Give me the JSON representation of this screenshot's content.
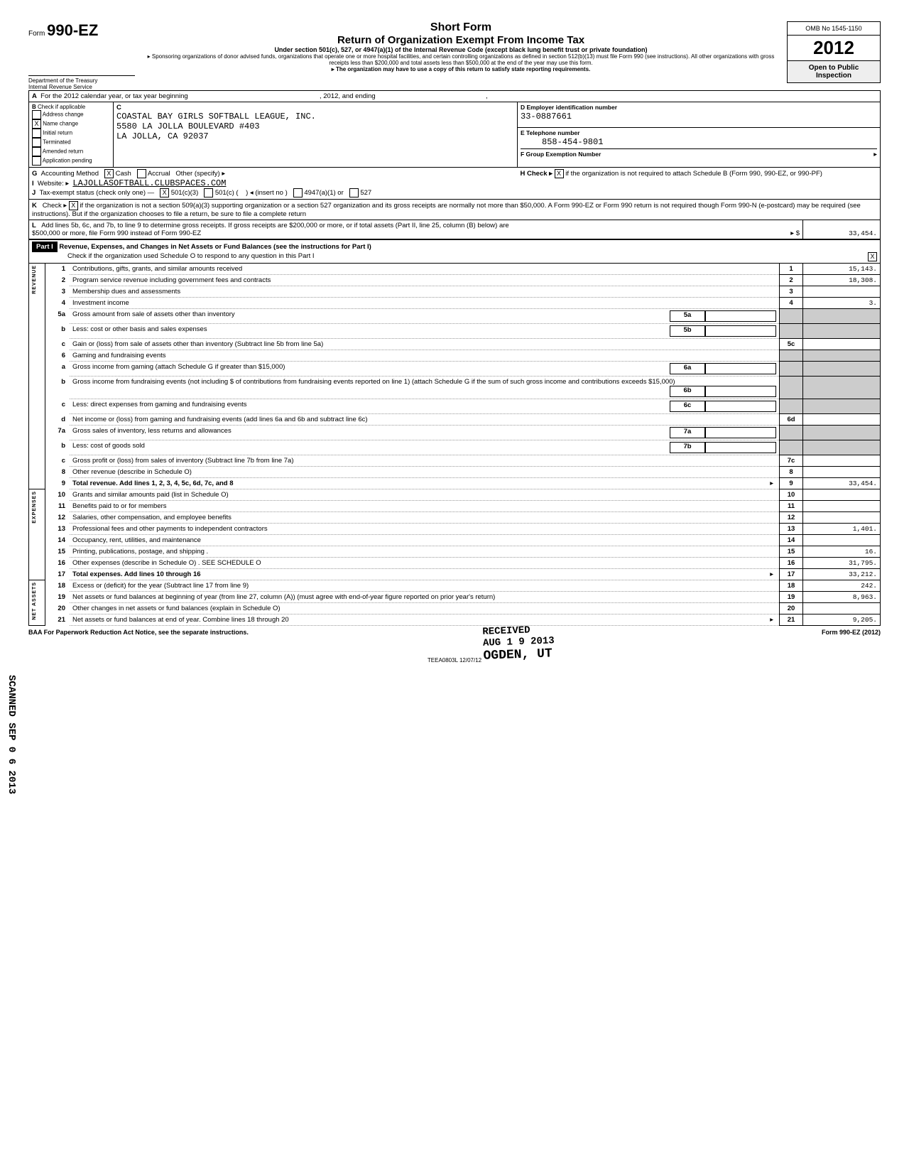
{
  "form": {
    "number_prefix": "Form",
    "number": "990-EZ",
    "title_short": "Short Form",
    "title_main": "Return of Organization Exempt From Income Tax",
    "title_sub": "Under section 501(c), 527, or 4947(a)(1) of the Internal Revenue Code (except black lung benefit trust or private foundation)",
    "sponsor_note": "Sponsoring organizations of donor advised funds, organizations that operate one or more hospital facilities, and certain controlling organizations as defined in section 512(b)(13) must file Form 990 (see instructions). All other organizations with gross receipts less than $200,000 and total assets less than $500,000 at the end of the year may use this form.",
    "satisfy_note": "The organization may have to use a copy of this return to satisfy state reporting requirements.",
    "dept1": "Department of the Treasury",
    "dept2": "Internal Revenue Service",
    "omb": "OMB No 1545-1150",
    "year": "2012",
    "open": "Open to Public Inspection"
  },
  "header": {
    "A": "For the 2012 calendar year, or tax year beginning",
    "A_mid": ", 2012, and ending",
    "A_end": ",",
    "B_label": "Check if applicable",
    "B_opts": [
      "Address change",
      "Name change",
      "Initial return",
      "Terminated",
      "Amended return",
      "Application pending"
    ],
    "B_checked_idx": 1,
    "C_label": "C",
    "org_name": "COASTAL BAY GIRLS SOFTBALL LEAGUE, INC.",
    "org_addr1": "5580 LA JOLLA BOULEVARD #403",
    "org_addr2": "LA JOLLA, CA 92037",
    "D_label": "D  Employer identification number",
    "D_val": "33-0887661",
    "E_label": "E  Telephone number",
    "E_val": "858-454-9801",
    "F_label": "F  Group Exemption Number",
    "G_label": "Accounting Method",
    "G_cash": "Cash",
    "G_accrual": "Accrual",
    "G_other": "Other (specify) ▸",
    "I_label": "Website: ▸",
    "I_val": "LAJOLLASOFTBALL.CLUBSPACES.COM",
    "J_label": "Tax-exempt status (check only one) —",
    "J_501c3": "501(c)(3)",
    "J_501c": "501(c) (",
    "J_insert": ") ◂ (insert no )",
    "J_4947": "4947(a)(1) or",
    "J_527": "527",
    "H_label": "H  Check ▸",
    "H_text": "if the organization is not required to attach Schedule B (Form 990, 990-EZ, or 990-PF)",
    "K_label": "K",
    "K_text": "Check ▸",
    "K_rest": "if the organization is not a section 509(a)(3) supporting organization or a section 527 organization and its gross receipts are normally not more than $50,000. A Form 990-EZ or Form 990 return is not required though Form 990-N (e-postcard) may be required (see instructions). But if the organization chooses to file a return, be sure to file a complete return",
    "L_label": "L",
    "L_text": "Add lines 5b, 6c, and 7b, to line 9 to determine gross receipts. If gross receipts are $200,000 or more, or if total assets (Part II, line 25, column (B) below) are $500,000 or more, file Form 990 instead of Form 990-EZ",
    "L_arrow": "▸ $",
    "L_val": "33,454."
  },
  "part1": {
    "title": "Part I",
    "heading": "Revenue, Expenses, and Changes in Net Assets or Fund Balances (see the instructions for Part I)",
    "check_text": "Check if the organization used Schedule O to respond to any question in this Part I",
    "check_val": "X",
    "vert_rev": "REVENUE",
    "vert_exp": "EXPENSES",
    "vert_net": "NET ASSETS",
    "lines": [
      {
        "n": "1",
        "desc": "Contributions, gifts, grants, and similar amounts received",
        "box": "1",
        "val": "15,143."
      },
      {
        "n": "2",
        "desc": "Program service revenue including government fees and contracts",
        "box": "2",
        "val": "18,308."
      },
      {
        "n": "3",
        "desc": "Membership dues and assessments",
        "box": "3",
        "val": ""
      },
      {
        "n": "4",
        "desc": "Investment income",
        "box": "4",
        "val": "3."
      },
      {
        "n": "5a",
        "desc": "Gross amount from sale of assets other than inventory",
        "inner": "5a"
      },
      {
        "n": "b",
        "desc": "Less: cost or other basis and sales expenses",
        "inner": "5b"
      },
      {
        "n": "c",
        "desc": "Gain or (loss) from sale of assets other than inventory (Subtract line 5b from line 5a)",
        "box": "5c",
        "val": ""
      },
      {
        "n": "6",
        "desc": "Gaming and fundraising events"
      },
      {
        "n": "a",
        "desc": "Gross income from gaming (attach Schedule G if greater than $15,000)",
        "inner": "6a"
      },
      {
        "n": "b",
        "desc": "Gross income from fundraising events (not including $                              of contributions from fundraising events reported on line 1) (attach Schedule G if the sum of such gross income and contributions exceeds $15,000)",
        "inner": "6b"
      },
      {
        "n": "c",
        "desc": "Less: direct expenses from gaming and fundraising events",
        "inner": "6c"
      },
      {
        "n": "d",
        "desc": "Net income or (loss) from gaming and fundraising events (add lines 6a and 6b and subtract line 6c)",
        "box": "6d",
        "val": ""
      },
      {
        "n": "7a",
        "desc": "Gross sales of inventory, less returns and allowances",
        "inner": "7a"
      },
      {
        "n": "b",
        "desc": "Less: cost of goods sold",
        "inner": "7b"
      },
      {
        "n": "c",
        "desc": "Gross profit or (loss) from sales of inventory (Subtract line 7b from line 7a)",
        "box": "7c",
        "val": ""
      },
      {
        "n": "8",
        "desc": "Other revenue (describe in Schedule O)",
        "box": "8",
        "val": ""
      },
      {
        "n": "9",
        "desc": "Total revenue. Add lines 1, 2, 3, 4, 5c, 6d, 7c, and 8",
        "box": "9",
        "val": "33,454.",
        "bold": true,
        "arrow": true
      },
      {
        "n": "10",
        "desc": "Grants and similar amounts paid (list in Schedule O)",
        "box": "10",
        "val": ""
      },
      {
        "n": "11",
        "desc": "Benefits paid to or for members",
        "box": "11",
        "val": ""
      },
      {
        "n": "12",
        "desc": "Salaries, other compensation, and employee benefits",
        "box": "12",
        "val": ""
      },
      {
        "n": "13",
        "desc": "Professional fees and other payments to independent contractors",
        "box": "13",
        "val": "1,401."
      },
      {
        "n": "14",
        "desc": "Occupancy, rent, utilities, and maintenance",
        "box": "14",
        "val": ""
      },
      {
        "n": "15",
        "desc": "Printing, publications, postage, and shipping .",
        "box": "15",
        "val": "16."
      },
      {
        "n": "16",
        "desc": "Other expenses (describe in Schedule O)   .                                    SEE SCHEDULE O",
        "box": "16",
        "val": "31,795."
      },
      {
        "n": "17",
        "desc": "Total expenses. Add lines 10 through 16",
        "box": "17",
        "val": "33,212.",
        "bold": true,
        "arrow": true
      },
      {
        "n": "18",
        "desc": "Excess or (deficit) for the year (Subtract line 17 from line 9)",
        "box": "18",
        "val": "242."
      },
      {
        "n": "19",
        "desc": "Net assets or fund balances at beginning of year (from line 27, column (A)) (must agree with end-of-year figure reported on prior year's return)",
        "box": "19",
        "val": "8,963."
      },
      {
        "n": "20",
        "desc": "Other changes in net assets or fund balances (explain in Schedule O)",
        "box": "20",
        "val": ""
      },
      {
        "n": "21",
        "desc": "Net assets or fund balances at end of year. Combine lines 18 through 20",
        "box": "21",
        "val": "9,205.",
        "arrow": true
      }
    ]
  },
  "stamps": {
    "received": "RECEIVED",
    "date": "AUG 1 9 2013",
    "ogden": "OGDEN, UT",
    "scanned": "SCANNED SEP 0 6 2013"
  },
  "footer": {
    "left": "BAA  For Paperwork Reduction Act Notice, see the separate instructions.",
    "mid": "TEEA0803L  12/07/12",
    "right": "Form 990-EZ (2012)"
  }
}
